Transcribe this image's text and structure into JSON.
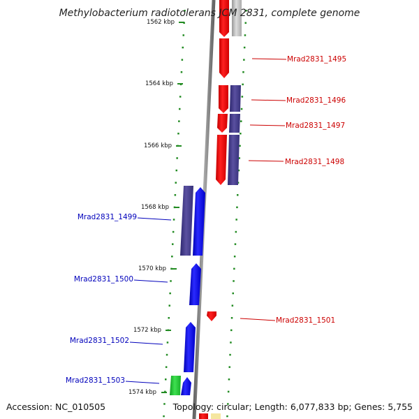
{
  "title": "Methylobacterium radiotolerans JCM 2831, complete genome",
  "footer": {
    "accession": "Accession: NC_010505",
    "summary": "Topology: circular; Length: 6,077,833 bp; Genes: 5,755"
  },
  "scale": {
    "ticks": [
      "1562 kbp",
      "1564 kbp",
      "1566 kbp",
      "1568 kbp",
      "1570 kbp",
      "1572 kbp",
      "1574 kbp"
    ]
  },
  "genes": {
    "forward": [
      "Mrad2831_1495",
      "Mrad2831_1496",
      "Mrad2831_1497",
      "Mrad2831_1498",
      "Mrad2831_1501"
    ],
    "reverse": [
      "Mrad2831_1499",
      "Mrad2831_1500",
      "Mrad2831_1502",
      "Mrad2831_1503"
    ]
  },
  "colors": {
    "forward_cds": "#ff0000",
    "reverse_cds": "#0000ff",
    "forward_label": "#cc0000",
    "reverse_label": "#0000bb",
    "reverse_operon": "#3d3580",
    "forward_operon": "#4a3f8a",
    "rna": "#22cc33",
    "tick": "#228b22",
    "backbone": "#888888"
  }
}
